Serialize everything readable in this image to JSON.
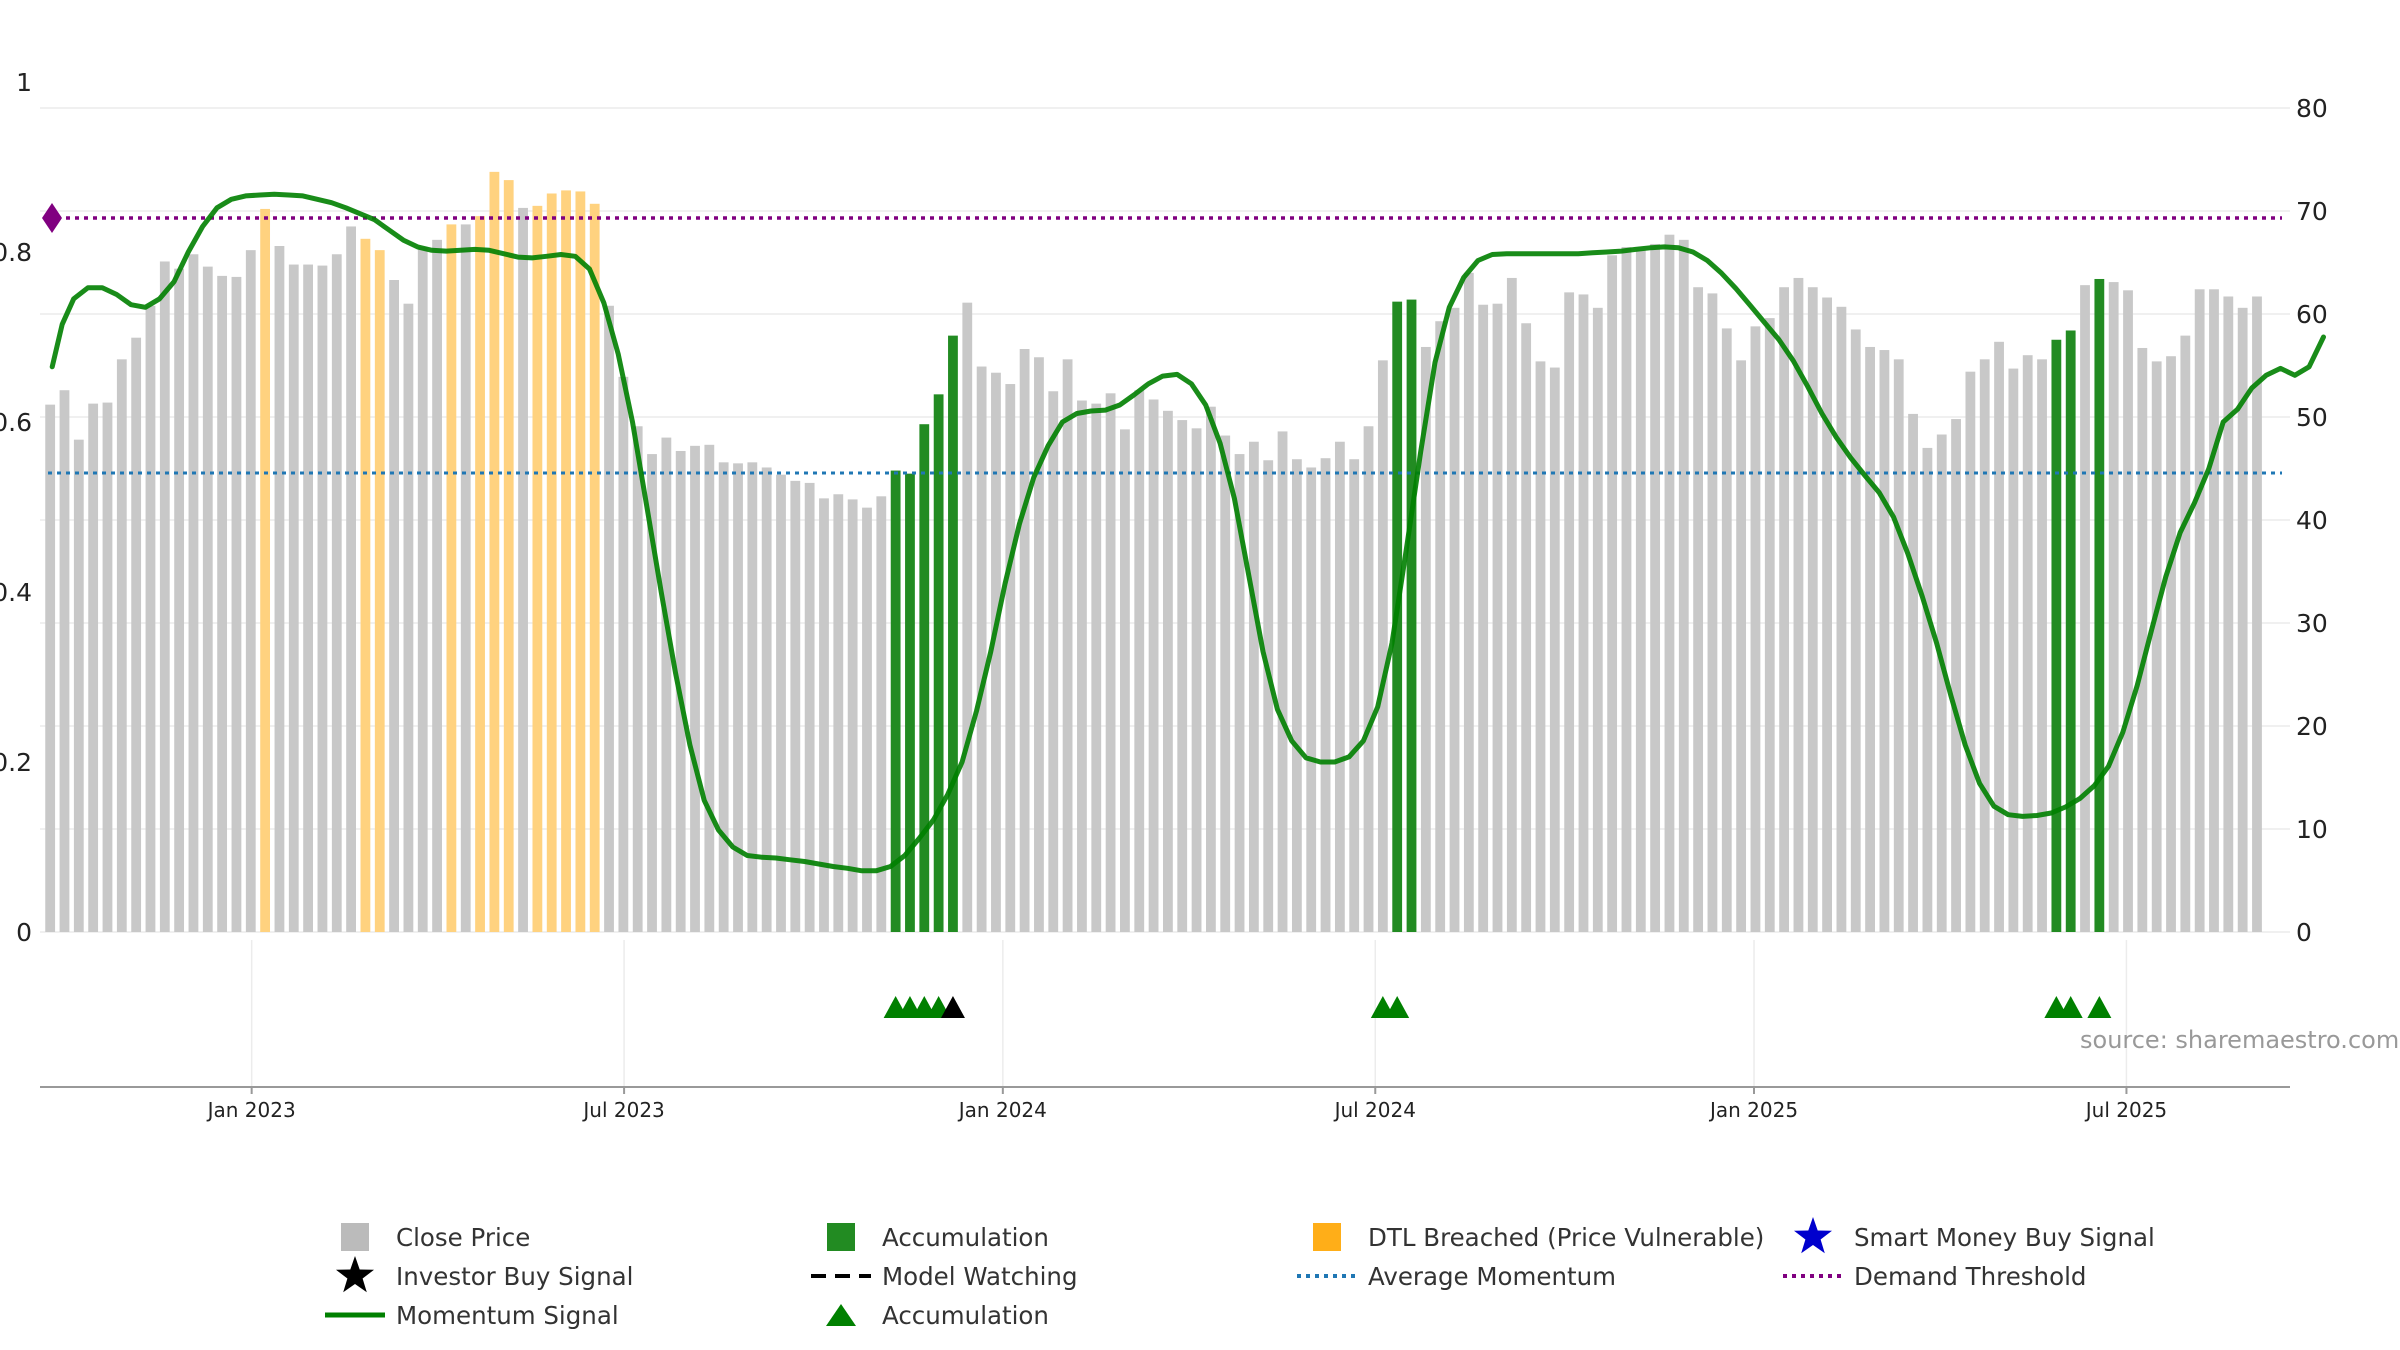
{
  "chart_data": {
    "type": "bar",
    "title": "",
    "source": "source: sharemaestro.com",
    "left_axis": {
      "min": 0,
      "max": 1,
      "ticks": [
        "0",
        "0.2",
        "0.4",
        "0.6",
        "0.8",
        "1"
      ],
      "tick_values": [
        0,
        0.2,
        0.4,
        0.6,
        0.8,
        1.0
      ]
    },
    "right_axis": {
      "min": 0,
      "max": 80,
      "ticks": [
        "0",
        "10",
        "20",
        "30",
        "40",
        "50",
        "60",
        "70",
        "80"
      ],
      "tick_values": [
        0,
        10,
        20,
        30,
        40,
        50,
        60,
        70,
        80
      ]
    },
    "x_axis": {
      "ticks": [
        "Jan 2023",
        "Jul 2023",
        "Jan 2024",
        "Jul 2024",
        "Jan 2025",
        "Jul 2025"
      ],
      "tick_positions": [
        14.77,
        40.76,
        67.19,
        93.18,
        119.61,
        145.6
      ]
    },
    "bar_series": {
      "name": "Close Price",
      "axis": "right",
      "values": [
        51.2,
        52.6,
        47.8,
        51.3,
        51.4,
        55.6,
        57.7,
        60.8,
        65.1,
        64.4,
        65.8,
        64.6,
        63.7,
        63.6,
        66.2,
        70.2,
        66.6,
        64.8,
        64.8,
        64.7,
        65.8,
        68.5,
        67.3,
        66.2,
        63.3,
        61.0,
        66.5,
        67.2,
        68.7,
        68.7,
        69.5,
        73.8,
        73.0,
        70.3,
        70.5,
        71.7,
        72.0,
        71.9,
        70.7,
        60.8,
        53.9,
        49.1,
        46.4,
        48.0,
        46.7,
        47.2,
        47.3,
        45.6,
        45.5,
        45.6,
        45.1,
        44.4,
        43.8,
        43.6,
        42.1,
        42.5,
        42.0,
        41.2,
        42.3,
        44.8,
        44.5,
        49.3,
        52.2,
        57.9,
        61.1,
        54.9,
        54.3,
        53.2,
        56.6,
        55.8,
        52.5,
        55.6,
        51.6,
        51.3,
        52.3,
        48.8,
        52.6,
        51.7,
        50.6,
        49.7,
        48.9,
        51.0,
        48.2,
        46.4,
        47.6,
        45.8,
        48.6,
        45.9,
        45.1,
        46.0,
        47.6,
        45.9,
        49.1,
        55.5,
        61.2,
        61.4,
        56.8,
        59.3,
        60.6,
        64.0,
        60.9,
        61.0,
        63.5,
        59.1,
        55.4,
        54.8,
        62.1,
        61.9,
        60.6,
        65.7,
        66.5,
        66.2,
        66.8,
        67.7,
        67.2,
        62.6,
        62.0,
        58.6,
        55.5,
        58.8,
        59.6,
        62.6,
        63.5,
        62.6,
        61.6,
        60.7,
        58.5,
        56.8,
        56.5,
        55.6,
        50.3,
        47.0,
        48.3,
        49.8,
        54.4,
        55.6,
        57.3,
        54.7,
        56.0,
        55.6,
        57.5,
        58.4,
        62.8,
        63.4,
        63.1,
        62.3,
        56.7,
        55.4,
        55.9,
        57.9,
        62.4,
        62.4,
        61.7,
        60.6,
        61.7
      ],
      "accumulation_indices": [
        59,
        60,
        61,
        62,
        63,
        94,
        95,
        140,
        141,
        143
      ],
      "dtl_indices": [
        15,
        22,
        23,
        28,
        30,
        31,
        32,
        34,
        35,
        36,
        37,
        38
      ]
    },
    "momentum_series": {
      "name": "Momentum Signal",
      "axis": "left",
      "points": [
        [
          0.5,
          0.665
        ],
        [
          1.2,
          0.715
        ],
        [
          2,
          0.745
        ],
        [
          3,
          0.758
        ],
        [
          4,
          0.758
        ],
        [
          5,
          0.75
        ],
        [
          6,
          0.738
        ],
        [
          7,
          0.735
        ],
        [
          8,
          0.745
        ],
        [
          9,
          0.765
        ],
        [
          10,
          0.8
        ],
        [
          11,
          0.83
        ],
        [
          12,
          0.852
        ],
        [
          13,
          0.862
        ],
        [
          14,
          0.866
        ],
        [
          15,
          0.867
        ],
        [
          16,
          0.868
        ],
        [
          17,
          0.867
        ],
        [
          18,
          0.866
        ],
        [
          19,
          0.862
        ],
        [
          20,
          0.858
        ],
        [
          21,
          0.852
        ],
        [
          22,
          0.845
        ],
        [
          23,
          0.838
        ],
        [
          24,
          0.826
        ],
        [
          25,
          0.814
        ],
        [
          26,
          0.806
        ],
        [
          27,
          0.802
        ],
        [
          28,
          0.801
        ],
        [
          29,
          0.802
        ],
        [
          30,
          0.803
        ],
        [
          31,
          0.802
        ],
        [
          32,
          0.798
        ],
        [
          33,
          0.794
        ],
        [
          34,
          0.793
        ],
        [
          35,
          0.795
        ],
        [
          36,
          0.797
        ],
        [
          37,
          0.795
        ],
        [
          38,
          0.78
        ],
        [
          39,
          0.74
        ],
        [
          40,
          0.68
        ],
        [
          41,
          0.6
        ],
        [
          42,
          0.5
        ],
        [
          43,
          0.4
        ],
        [
          44,
          0.305
        ],
        [
          45,
          0.22
        ],
        [
          46,
          0.155
        ],
        [
          47,
          0.12
        ],
        [
          48,
          0.1
        ],
        [
          49,
          0.09
        ],
        [
          50,
          0.088
        ],
        [
          51,
          0.087
        ],
        [
          52,
          0.085
        ],
        [
          53,
          0.083
        ],
        [
          54,
          0.08
        ],
        [
          55,
          0.077
        ],
        [
          56,
          0.075
        ],
        [
          57,
          0.072
        ],
        [
          58,
          0.072
        ],
        [
          59,
          0.077
        ],
        [
          60,
          0.09
        ],
        [
          61,
          0.11
        ],
        [
          62,
          0.132
        ],
        [
          63,
          0.162
        ],
        [
          64,
          0.2
        ],
        [
          65,
          0.26
        ],
        [
          66,
          0.33
        ],
        [
          67,
          0.41
        ],
        [
          68,
          0.48
        ],
        [
          69,
          0.535
        ],
        [
          70,
          0.572
        ],
        [
          71,
          0.6
        ],
        [
          72,
          0.61
        ],
        [
          73,
          0.613
        ],
        [
          74,
          0.614
        ],
        [
          75,
          0.62
        ],
        [
          76,
          0.632
        ],
        [
          77,
          0.645
        ],
        [
          78,
          0.654
        ],
        [
          79,
          0.656
        ],
        [
          80,
          0.645
        ],
        [
          81,
          0.62
        ],
        [
          82,
          0.575
        ],
        [
          83,
          0.51
        ],
        [
          84,
          0.42
        ],
        [
          85,
          0.33
        ],
        [
          86,
          0.262
        ],
        [
          87,
          0.225
        ],
        [
          88,
          0.205
        ],
        [
          89,
          0.2
        ],
        [
          90,
          0.2
        ],
        [
          91,
          0.206
        ],
        [
          92,
          0.225
        ],
        [
          93,
          0.265
        ],
        [
          94,
          0.34
        ],
        [
          95,
          0.45
        ],
        [
          96,
          0.565
        ],
        [
          97,
          0.67
        ],
        [
          98,
          0.735
        ],
        [
          99,
          0.77
        ],
        [
          100,
          0.79
        ],
        [
          101,
          0.797
        ],
        [
          102,
          0.798
        ],
        [
          103,
          0.798
        ],
        [
          104,
          0.798
        ],
        [
          105,
          0.798
        ],
        [
          106,
          0.798
        ],
        [
          107,
          0.798
        ],
        [
          108,
          0.799
        ],
        [
          109,
          0.8
        ],
        [
          110,
          0.801
        ],
        [
          111,
          0.803
        ],
        [
          112,
          0.805
        ],
        [
          113,
          0.806
        ],
        [
          114,
          0.805
        ],
        [
          115,
          0.8
        ],
        [
          116,
          0.79
        ],
        [
          117,
          0.775
        ],
        [
          118,
          0.757
        ],
        [
          119,
          0.737
        ],
        [
          120,
          0.717
        ],
        [
          121,
          0.697
        ],
        [
          122,
          0.672
        ],
        [
          123,
          0.642
        ],
        [
          124,
          0.61
        ],
        [
          125,
          0.582
        ],
        [
          126,
          0.558
        ],
        [
          127,
          0.537
        ],
        [
          128,
          0.517
        ],
        [
          129,
          0.488
        ],
        [
          130,
          0.445
        ],
        [
          131,
          0.395
        ],
        [
          132,
          0.34
        ],
        [
          133,
          0.278
        ],
        [
          134,
          0.22
        ],
        [
          135,
          0.175
        ],
        [
          136,
          0.148
        ],
        [
          137,
          0.138
        ],
        [
          138,
          0.136
        ],
        [
          139,
          0.137
        ],
        [
          140,
          0.14
        ],
        [
          141,
          0.147
        ],
        [
          142,
          0.157
        ],
        [
          143,
          0.172
        ],
        [
          144,
          0.195
        ],
        [
          145,
          0.235
        ],
        [
          146,
          0.29
        ],
        [
          147,
          0.355
        ],
        [
          148,
          0.418
        ],
        [
          149,
          0.47
        ],
        [
          150,
          0.505
        ],
        [
          151,
          0.545
        ],
        [
          152,
          0.6
        ],
        [
          153,
          0.615
        ],
        [
          154,
          0.64
        ],
        [
          155,
          0.655
        ],
        [
          156,
          0.663
        ],
        [
          157,
          0.655
        ],
        [
          158,
          0.665
        ],
        [
          159,
          0.7
        ]
      ]
    },
    "demand_threshold": {
      "name": "Demand Threshold",
      "axis": "left",
      "value": 0.84,
      "color": "#800080"
    },
    "average_momentum": {
      "name": "Average Momentum",
      "axis": "left",
      "value": 0.54,
      "color": "#1f77b4"
    },
    "accumulation_markers": [
      59.5,
      60.5,
      61.5,
      62.5,
      93.5,
      94.5,
      140.5,
      141.5,
      143.5
    ],
    "investor_buy_markers": [
      63.5
    ],
    "legend": [
      {
        "label": "Close Price",
        "symbol": "square",
        "color": "#bbbbbb"
      },
      {
        "label": "Accumulation",
        "symbol": "square",
        "color": "#228b22"
      },
      {
        "label": "DTL Breached (Price Vulnerable)",
        "symbol": "square",
        "color": "#ffae18"
      },
      {
        "label": "Smart Money Buy Signal",
        "symbol": "star",
        "color": "#0000cd"
      },
      {
        "label": "Investor Buy Signal",
        "symbol": "star",
        "color": "#000000"
      },
      {
        "label": "Model Watching",
        "symbol": "dashed",
        "color": "#000000"
      },
      {
        "label": "Average Momentum",
        "symbol": "dotted",
        "color": "#1f77b4"
      },
      {
        "label": "Demand Threshold",
        "symbol": "dotted",
        "color": "#800080"
      },
      {
        "label": "Momentum Signal",
        "symbol": "line",
        "color": "#008000"
      },
      {
        "label": "Accumulation",
        "symbol": "triangle",
        "color": "#008000"
      }
    ],
    "colors": {
      "close_price": "#c8c8c8",
      "accumulation": "#228b22",
      "dtl": "#ffd27f",
      "momentum": "#008000",
      "triangle": "#008000",
      "investor": "#000000",
      "grid": "#ececec",
      "axis": "#999999"
    }
  }
}
